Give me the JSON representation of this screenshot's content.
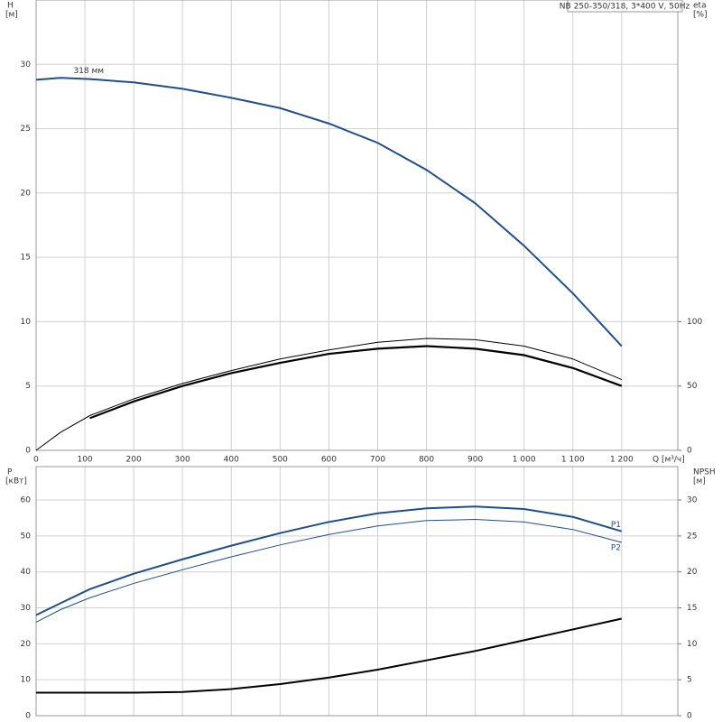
{
  "chart_data": [
    {
      "type": "line",
      "title": "NB 250-350/318, 3*400 V, 50Hz",
      "x_label": "Q [м³/ч]",
      "y_label": "H",
      "y_unit": "[м]",
      "y2_label": "eta",
      "y2_unit": "[%]",
      "x": [
        0,
        50,
        110,
        200,
        300,
        400,
        500,
        600,
        700,
        800,
        900,
        1000,
        1100,
        1200
      ],
      "xlim": [
        0,
        1315
      ],
      "ylim": [
        0,
        35
      ],
      "y2lim": [
        0,
        350
      ],
      "xticks": [
        0,
        100,
        200,
        300,
        400,
        500,
        600,
        700,
        800,
        900,
        {
          "value": 1000,
          "label": "1 000"
        },
        {
          "value": 1100,
          "label": "1 100"
        },
        {
          "value": 1200,
          "label": "1 200"
        }
      ],
      "yticks": [
        0,
        5,
        10,
        15,
        20,
        25,
        30
      ],
      "y2ticks": [
        0,
        50,
        100
      ],
      "show_xtick_labels": true,
      "grid": true,
      "series_label_position": "start",
      "series": [
        {
          "name": "318 мм",
          "color": "#1f4e8c",
          "linewidth": 2,
          "values": [
            28.8,
            28.95,
            28.85,
            28.6,
            28.1,
            27.4,
            26.6,
            25.4,
            23.9,
            21.8,
            19.2,
            15.9,
            12.2,
            8.1
          ]
        },
        {
          "color": "#000000",
          "linewidth": 1,
          "axis": "y2",
          "values": [
            0,
            14,
            27,
            40,
            52,
            62,
            71,
            78,
            84,
            87,
            86,
            81,
            71,
            55
          ]
        },
        {
          "color": "#000000",
          "linewidth": 2.2,
          "axis": "y2",
          "values": [
            null,
            null,
            25,
            38,
            50,
            60,
            68,
            75,
            79,
            81,
            79,
            74,
            64,
            50
          ]
        }
      ]
    },
    {
      "type": "line",
      "y_label": "P",
      "y_unit": "[кВт]",
      "y2_label": "NPSH",
      "y2_unit": "[м]",
      "x": [
        0,
        50,
        110,
        200,
        300,
        400,
        500,
        600,
        700,
        800,
        900,
        1000,
        1100,
        1200
      ],
      "xlim": [
        0,
        1315
      ],
      "ylim": [
        0,
        69.3
      ],
      "y2lim": [
        0,
        34.65
      ],
      "xticks": [
        0,
        100,
        200,
        300,
        400,
        500,
        600,
        700,
        800,
        900,
        1000,
        1100,
        1200
      ],
      "yticks": [
        0,
        10,
        20,
        30,
        40,
        50,
        60
      ],
      "y2ticks": [
        0,
        5,
        10,
        15,
        20,
        25,
        30
      ],
      "show_xtick_labels": false,
      "grid": true,
      "series_label_position": "end",
      "series": [
        {
          "name": "P1",
          "color": "#1f4e8c",
          "linewidth": 2,
          "values": [
            28,
            31.3,
            35.2,
            39.5,
            43.5,
            47.3,
            50.8,
            53.9,
            56.3,
            57.7,
            58.2,
            57.5,
            55.3,
            51.3
          ]
        },
        {
          "name": "P2",
          "color": "#1f4e8c",
          "linewidth": 1,
          "values": [
            26,
            29.5,
            32.8,
            36.8,
            40.6,
            44.2,
            47.5,
            50.4,
            52.8,
            54.3,
            54.6,
            53.9,
            51.8,
            48.2
          ]
        },
        {
          "color": "#000000",
          "linewidth": 2,
          "axis": "y2",
          "values": [
            3.2,
            3.2,
            3.2,
            3.2,
            3.3,
            3.7,
            4.4,
            5.3,
            6.4,
            7.7,
            9.0,
            10.5,
            12.0,
            13.5
          ]
        }
      ]
    }
  ]
}
